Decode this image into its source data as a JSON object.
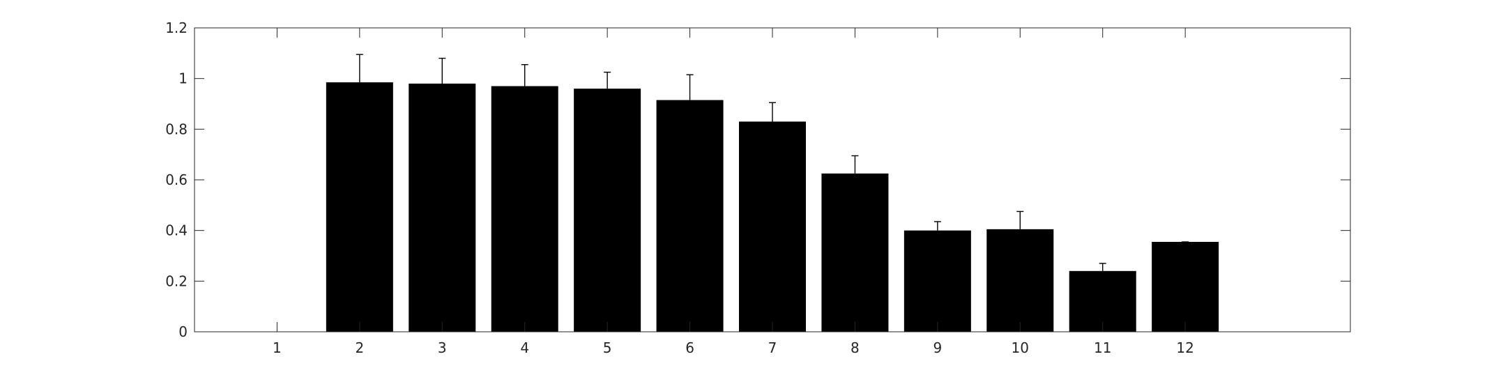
{
  "chart_data": {
    "type": "bar",
    "title": "",
    "xlabel": "",
    "ylabel": "",
    "categories": [
      "1",
      "2",
      "3",
      "4",
      "5",
      "6",
      "7",
      "8",
      "9",
      "10",
      "11",
      "12"
    ],
    "values": [
      0,
      0.985,
      0.98,
      0.97,
      0.96,
      0.915,
      0.83,
      0.625,
      0.4,
      0.405,
      0.24,
      0.355
    ],
    "error_upper": [
      0,
      0.11,
      0.1,
      0.085,
      0.065,
      0.1,
      0.075,
      0.07,
      0.035,
      0.07,
      0.03,
      0.0
    ],
    "ylim": [
      0,
      1.2
    ],
    "xlim": [
      0,
      14
    ],
    "yticks": [
      "0",
      "0.2",
      "0.4",
      "0.6",
      "0.8",
      "1",
      "1.2"
    ],
    "bar_color": "#000000",
    "axis_color": "#262626",
    "grid": false,
    "box": true
  }
}
